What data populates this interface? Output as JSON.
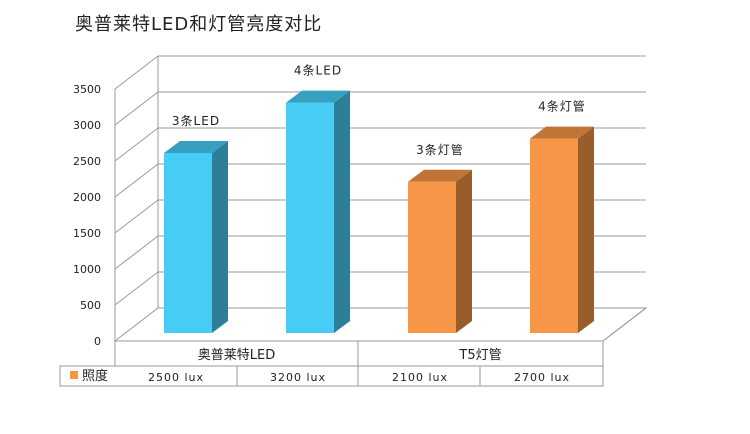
{
  "chart_data": {
    "type": "bar",
    "title": "奥普莱特LED和灯管亮度对比",
    "groups": [
      "奥普莱特LED",
      "T5灯管"
    ],
    "categories": [
      "3条LED",
      "4条LED",
      "3条灯管",
      "4条灯管"
    ],
    "series": [
      {
        "name": "照度",
        "values": [
          2500,
          3200,
          2100,
          2700
        ]
      }
    ],
    "table_values": [
      "2500 lux",
      "3200 lux",
      "2100 lux",
      "2700 lux"
    ],
    "bar_colors": [
      "#47cdf5",
      "#47cdf5",
      "#f79646",
      "#f79646"
    ],
    "legend_color": "#f79646",
    "ylim": [
      0,
      3500
    ],
    "yticks": [
      0,
      500,
      1000,
      1500,
      2000,
      2500,
      3000,
      3500
    ],
    "grid": true,
    "three_d": true,
    "legend_placement": "data-table"
  }
}
